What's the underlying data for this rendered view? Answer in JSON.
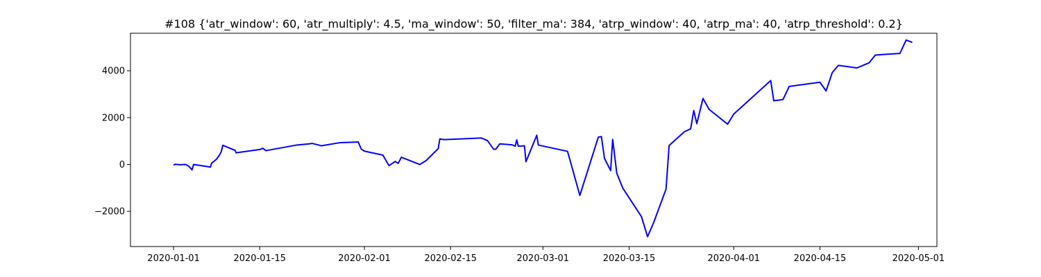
{
  "chart_data": {
    "type": "line",
    "title": "#108 {'atr_window': 60, 'atr_multiply': 4.5, 'ma_window': 50, 'filter_ma': 384, 'atrp_window': 40, 'atrp_ma': 40, 'atrp_threshold': 0.2}",
    "xlabel": "",
    "ylabel": "",
    "xlim": [
      "2019-12-25",
      "2020-05-04"
    ],
    "ylim": [
      -3500,
      5600
    ],
    "x_ticks": [
      "2020-01-01",
      "2020-01-15",
      "2020-02-01",
      "2020-02-15",
      "2020-03-01",
      "2020-03-15",
      "2020-04-01",
      "2020-04-15",
      "2020-05-01"
    ],
    "y_ticks": [
      -2000,
      0,
      2000,
      4000
    ],
    "y_tick_labels": [
      "−2000",
      "0",
      "2000",
      "4000"
    ],
    "grid": false,
    "legend": "none",
    "line_color": "#0000ff",
    "series": [
      {
        "x": [
          "2020-01-01",
          "2020-01-01 06:00",
          "2020-01-02",
          "2020-01-03",
          "2020-01-03 12:00",
          "2020-01-04",
          "2020-01-04 06:00",
          "2020-01-07",
          "2020-01-07 04:00",
          "2020-01-08",
          "2020-01-08 12:00",
          "2020-01-08 18:00",
          "2020-01-09",
          "2020-01-11",
          "2020-01-11 04:00",
          "2020-01-15",
          "2020-01-15 12:00",
          "2020-01-16",
          "2020-01-21",
          "2020-01-23",
          "2020-01-23 12:00",
          "2020-01-25",
          "2020-01-28",
          "2020-01-31",
          "2020-01-31 12:00",
          "2020-02-01",
          "2020-02-04",
          "2020-02-05",
          "2020-02-06",
          "2020-02-06 12:00",
          "2020-02-07",
          "2020-02-10",
          "2020-02-11",
          "2020-02-13",
          "2020-02-13 06:00",
          "2020-02-14",
          "2020-02-20",
          "2020-02-21",
          "2020-02-22",
          "2020-02-22 08:00",
          "2020-02-23",
          "2020-02-25",
          "2020-02-25 12:00",
          "2020-02-25 18:00",
          "2020-02-26",
          "2020-02-27",
          "2020-02-27 06:00",
          "2020-02-29",
          "2020-02-29 06:00",
          "2020-03-05",
          "2020-03-07",
          "2020-03-10",
          "2020-03-10 12:00",
          "2020-03-11",
          "2020-03-12",
          "2020-03-12 08:00",
          "2020-03-13",
          "2020-03-14",
          "2020-03-17",
          "2020-03-18",
          "2020-03-19",
          "2020-03-21",
          "2020-03-21 12:00",
          "2020-03-24",
          "2020-03-25",
          "2020-03-25 12:00",
          "2020-03-26",
          "2020-03-27",
          "2020-03-28",
          "2020-03-31",
          "2020-04-01",
          "2020-04-01 06:00",
          "2020-04-07",
          "2020-04-07 12:00",
          "2020-04-09",
          "2020-04-10",
          "2020-04-15",
          "2020-04-16",
          "2020-04-17",
          "2020-04-18",
          "2020-04-21",
          "2020-04-23",
          "2020-04-24",
          "2020-04-28",
          "2020-04-29",
          "2020-04-30"
        ],
        "y": [
          -30,
          10,
          -10,
          0,
          -80,
          -230,
          0,
          -110,
          50,
          230,
          420,
          550,
          820,
          600,
          500,
          640,
          690,
          590,
          830,
          880,
          900,
          800,
          930,
          960,
          650,
          570,
          400,
          -50,
          130,
          50,
          310,
          0,
          160,
          680,
          1090,
          1060,
          1130,
          1020,
          650,
          650,
          880,
          840,
          780,
          1050,
          780,
          800,
          120,
          1250,
          830,
          560,
          -1320,
          1170,
          1190,
          260,
          -260,
          1070,
          -380,
          -1020,
          -2220,
          -3080,
          -2470,
          -1050,
          810,
          1400,
          1520,
          2300,
          1740,
          2820,
          2350,
          1720,
          2150,
          2210,
          3580,
          2720,
          2770,
          3330,
          3510,
          3140,
          3920,
          4230,
          4120,
          4340,
          4670,
          4740,
          5310,
          5210
        ]
      }
    ]
  }
}
